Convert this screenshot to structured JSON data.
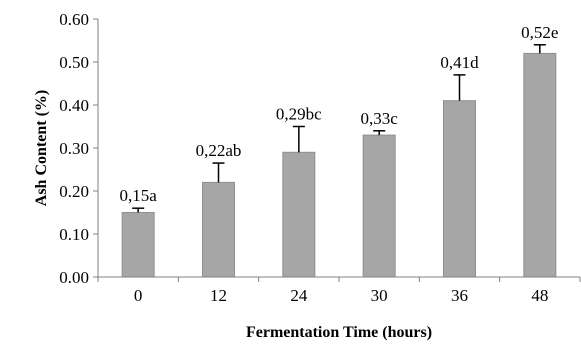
{
  "chart_data": {
    "type": "bar",
    "categories": [
      "0",
      "12",
      "24",
      "30",
      "36",
      "48"
    ],
    "values": [
      0.15,
      0.22,
      0.29,
      0.33,
      0.41,
      0.52
    ],
    "error_plus": [
      0.01,
      0.045,
      0.06,
      0.01,
      0.06,
      0.02
    ],
    "data_labels": [
      "0,15a",
      "0,22ab",
      "0,29bc",
      "0,33c",
      "0,41d",
      "0,52e"
    ],
    "xlabel": "Fermentation Time (hours)",
    "ylabel": "Ash Content (%)",
    "ylim": [
      0,
      0.6
    ],
    "yticks": [
      "0.00",
      "0.10",
      "0.20",
      "0.30",
      "0.40",
      "0.50",
      "0.60"
    ],
    "grid": false,
    "colors": {
      "bar": "#a6a6a6",
      "bar_edge": "#8f8f8f",
      "error": "#000000",
      "axis": "#808080"
    }
  }
}
